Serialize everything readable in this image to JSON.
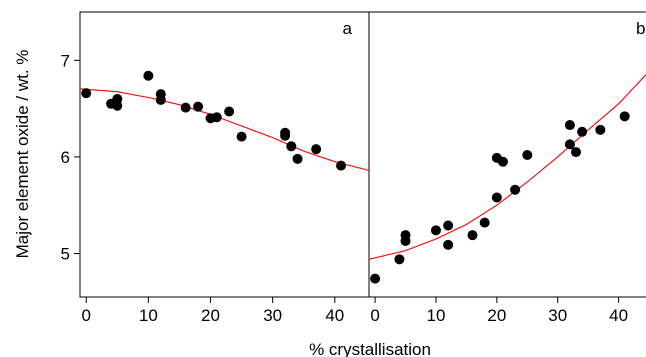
{
  "chart_data": [
    {
      "type": "scatter",
      "panel_label": "a",
      "xlabel": "% crystallisation",
      "ylabel": "Major element oxide / wt. %",
      "xlim": [
        -1,
        45.5
      ],
      "ylim": [
        4.55,
        7.5
      ],
      "xticks": [
        0,
        10,
        20,
        30,
        40
      ],
      "yticks": [
        5,
        6,
        7
      ],
      "grid": false,
      "point_color": "#000000",
      "fit_color": "#ff0000",
      "points": [
        [
          0,
          6.66
        ],
        [
          4,
          6.55
        ],
        [
          5,
          6.53
        ],
        [
          5,
          6.6
        ],
        [
          10,
          6.84
        ],
        [
          12,
          6.65
        ],
        [
          12,
          6.59
        ],
        [
          16,
          6.51
        ],
        [
          18,
          6.52
        ],
        [
          20,
          6.4
        ],
        [
          21,
          6.41
        ],
        [
          23,
          6.47
        ],
        [
          25,
          6.21
        ],
        [
          32,
          6.25
        ],
        [
          32,
          6.22
        ],
        [
          33,
          6.11
        ],
        [
          34,
          5.98
        ],
        [
          37,
          6.08
        ],
        [
          41,
          5.91
        ]
      ],
      "fit_curve": [
        [
          -1,
          6.705
        ],
        [
          5,
          6.675
        ],
        [
          10,
          6.615
        ],
        [
          15,
          6.54
        ],
        [
          20,
          6.44
        ],
        [
          25,
          6.32
        ],
        [
          30,
          6.2
        ],
        [
          35,
          6.06
        ],
        [
          40,
          5.95
        ],
        [
          45.5,
          5.86
        ]
      ]
    },
    {
      "type": "scatter",
      "panel_label": "b",
      "xlabel": "",
      "ylabel": "",
      "xlim": [
        -1,
        44.5
      ],
      "ylim": [
        4.55,
        7.5
      ],
      "xticks": [
        0,
        10,
        20,
        30,
        40
      ],
      "yticks": [],
      "grid": false,
      "point_color": "#000000",
      "fit_color": "#ff0000",
      "points": [
        [
          0,
          4.74
        ],
        [
          4,
          4.94
        ],
        [
          5,
          5.19
        ],
        [
          5,
          5.13
        ],
        [
          10,
          5.24
        ],
        [
          12,
          5.29
        ],
        [
          12,
          5.09
        ],
        [
          16,
          5.19
        ],
        [
          18,
          5.32
        ],
        [
          20,
          5.99
        ],
        [
          20,
          5.58
        ],
        [
          21,
          5.95
        ],
        [
          23,
          5.66
        ],
        [
          25,
          6.02
        ],
        [
          32,
          6.33
        ],
        [
          32,
          6.13
        ],
        [
          33,
          6.05
        ],
        [
          34,
          6.26
        ],
        [
          37,
          6.28
        ],
        [
          41,
          6.42
        ]
      ],
      "fit_curve": [
        [
          -1,
          4.94
        ],
        [
          5,
          5.03
        ],
        [
          10,
          5.15
        ],
        [
          15,
          5.3
        ],
        [
          20,
          5.5
        ],
        [
          25,
          5.74
        ],
        [
          30,
          6.0
        ],
        [
          35,
          6.28
        ],
        [
          40,
          6.55
        ],
        [
          44.5,
          6.85
        ]
      ]
    }
  ]
}
